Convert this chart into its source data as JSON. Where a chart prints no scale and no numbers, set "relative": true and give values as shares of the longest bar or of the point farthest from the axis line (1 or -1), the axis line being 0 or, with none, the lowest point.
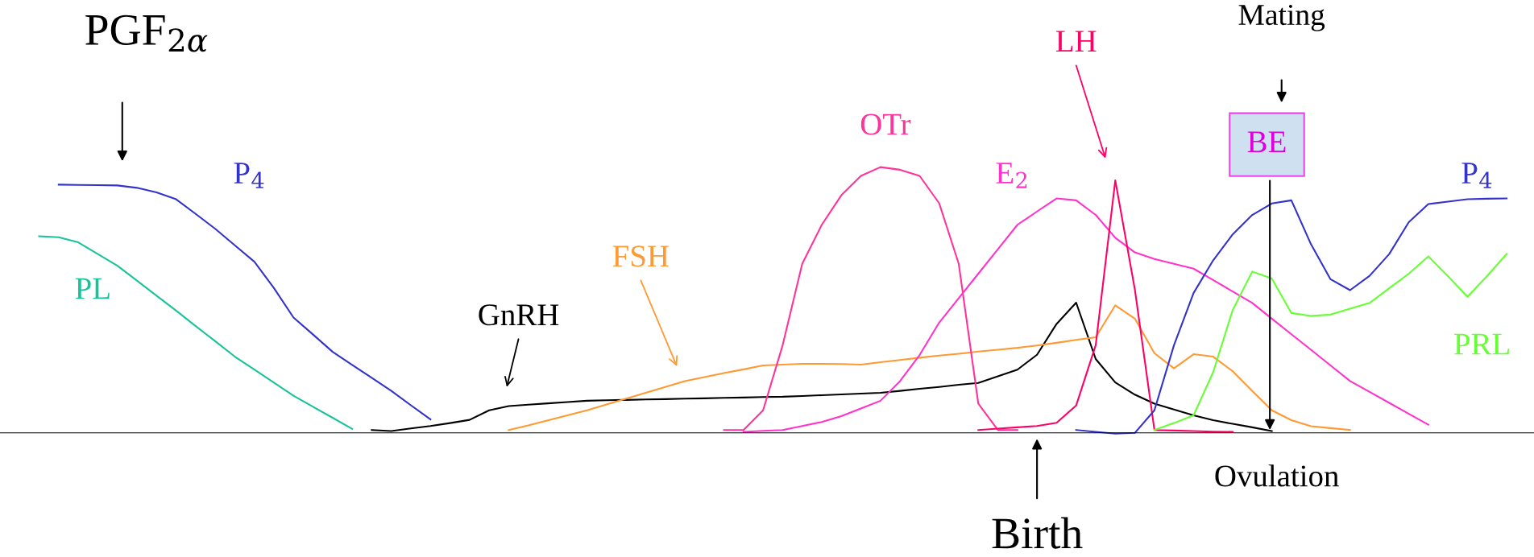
{
  "chart_data": {
    "type": "line",
    "relative": true,
    "marker": "none",
    "line_style": "solid",
    "categories": [
      null,
      null,
      null,
      null,
      null,
      null,
      null,
      null,
      null,
      null,
      null,
      null,
      null,
      null,
      null,
      null,
      null,
      null,
      null,
      null,
      null,
      null,
      null,
      null,
      null,
      null,
      null,
      null,
      null,
      null,
      null,
      null,
      null,
      null,
      null,
      null,
      null,
      null,
      null,
      null,
      null,
      null,
      null,
      null,
      null,
      null,
      null,
      null,
      null,
      null,
      null,
      null,
      null,
      null,
      null,
      null,
      null,
      null,
      null,
      null,
      null,
      null,
      null,
      null,
      null,
      null,
      null,
      null,
      null,
      null,
      null,
      null,
      null,
      null,
      null,
      null,
      null,
      null
    ],
    "series": [
      {
        "name": "PL",
        "color": "#19c39a",
        "values": [
          null,
          0.74,
          0.736,
          0.717,
          0.673,
          0.629,
          0.573,
          0.516,
          0.46,
          0.402,
          0.345,
          0.287,
          0.238,
          0.189,
          0.14,
          0.098,
          0.057,
          0.015,
          null,
          null,
          null,
          null,
          null,
          null,
          null,
          null,
          null,
          null,
          null,
          null,
          null,
          null,
          null,
          null,
          null,
          null,
          null,
          null,
          null,
          null,
          null,
          null,
          null,
          null,
          null,
          null,
          null,
          null,
          null,
          null,
          null,
          null,
          null,
          null,
          null,
          null,
          null,
          null,
          null,
          null,
          null,
          null,
          null,
          null,
          null,
          null,
          null,
          null,
          null,
          null,
          null,
          null,
          null,
          null,
          null,
          null,
          null,
          null
        ]
      },
      {
        "name": "P$_{4}$",
        "color": "#3333cc",
        "values": [
          null,
          null,
          0.934,
          0.933,
          0.932,
          0.931,
          0.922,
          0.905,
          0.879,
          0.824,
          0.768,
          0.706,
          0.644,
          0.545,
          0.434,
          0.37,
          0.305,
          0.256,
          0.207,
          0.158,
          0.104,
          0.051,
          null,
          null,
          null,
          null,
          null,
          null,
          null,
          null,
          null,
          null,
          null,
          null,
          null,
          null,
          null,
          null,
          null,
          null,
          null,
          null,
          null,
          null,
          null,
          null,
          null,
          null,
          null,
          null,
          null,
          null,
          null,
          null,
          null,
          null,
          null,
          null,
          null,
          null,
          null,
          null,
          null,
          null,
          null,
          null,
          null,
          null,
          null,
          null,
          null,
          null,
          null,
          null,
          null,
          null,
          null,
          null
        ]
      },
      {
        "name": "GnRH",
        "color": "#000000",
        "values": [
          null,
          null,
          null,
          null,
          null,
          null,
          null,
          null,
          null,
          null,
          null,
          null,
          null,
          null,
          null,
          null,
          null,
          null,
          0.011,
          0.007,
          0.017,
          0.026,
          0.037,
          0.049,
          0.085,
          0.101,
          0.106,
          0.111,
          0.116,
          0.121,
          0.123,
          0.124,
          0.126,
          0.127,
          0.129,
          0.13,
          0.132,
          0.133,
          0.135,
          0.136,
          0.139,
          0.142,
          0.145,
          0.148,
          0.151,
          0.158,
          0.166,
          0.173,
          0.181,
          0.188,
          0.213,
          0.238,
          0.294,
          0.41,
          0.49,
          0.278,
          0.19,
          0.144,
          0.11,
          0.088,
          0.066,
          0.048,
          0.034,
          0.021,
          0.007,
          null,
          null,
          null,
          null,
          null,
          null,
          null,
          null,
          null,
          null,
          null,
          null,
          null
        ]
      },
      {
        "name": "FSH",
        "color": "#ff9933",
        "values": [
          null,
          null,
          null,
          null,
          null,
          null,
          null,
          null,
          null,
          null,
          null,
          null,
          null,
          null,
          null,
          null,
          null,
          null,
          null,
          null,
          null,
          null,
          null,
          null,
          null,
          0.011,
          0.028,
          0.047,
          0.066,
          0.085,
          0.107,
          0.129,
          0.151,
          0.173,
          0.195,
          0.21,
          0.225,
          0.239,
          0.254,
          0.257,
          0.26,
          0.26,
          0.259,
          0.257,
          0.266,
          0.274,
          0.283,
          0.291,
          0.298,
          0.306,
          0.313,
          0.32,
          0.329,
          0.339,
          0.35,
          0.36,
          0.48,
          0.43,
          0.3,
          0.243,
          0.296,
          0.287,
          0.232,
          0.158,
          0.085,
          0.048,
          0.025,
          0.018,
          0.011,
          null,
          null,
          null,
          null,
          null,
          null,
          null,
          null,
          null
        ]
      },
      {
        "name": "OTr",
        "color": "#ff3399",
        "values": [
          null,
          null,
          null,
          null,
          null,
          null,
          null,
          null,
          null,
          null,
          null,
          null,
          null,
          null,
          null,
          null,
          null,
          null,
          null,
          null,
          null,
          null,
          null,
          null,
          null,
          null,
          null,
          null,
          null,
          null,
          null,
          null,
          null,
          null,
          null,
          null,
          0.011,
          0.011,
          0.085,
          0.33,
          0.636,
          0.783,
          0.894,
          0.967,
          1.0,
          0.99,
          0.967,
          0.864,
          0.636,
          0.11,
          0.011,
          0.011,
          null,
          null,
          null,
          null,
          null,
          null,
          null,
          null,
          null,
          null,
          null,
          null,
          null,
          null,
          null,
          null,
          null,
          null,
          null,
          null,
          null,
          null,
          null,
          null,
          null,
          null
        ]
      },
      {
        "name": "E$_{2}$",
        "color": "#ff33cc",
        "values": [
          null,
          null,
          null,
          null,
          null,
          null,
          null,
          null,
          null,
          null,
          null,
          null,
          null,
          null,
          null,
          null,
          null,
          null,
          null,
          null,
          null,
          null,
          null,
          null,
          null,
          null,
          null,
          null,
          null,
          null,
          null,
          null,
          null,
          null,
          null,
          null,
          null,
          0.004,
          0.008,
          0.011,
          0.026,
          0.041,
          0.063,
          0.092,
          0.121,
          0.195,
          0.293,
          0.415,
          0.507,
          0.599,
          0.691,
          0.783,
          0.833,
          0.882,
          0.875,
          0.82,
          0.734,
          0.679,
          0.654,
          0.636,
          0.618,
          0.575,
          0.532,
          0.489,
          0.43,
          0.371,
          0.313,
          0.254,
          0.195,
          0.154,
          0.113,
          0.072,
          0.031,
          null,
          null,
          null,
          null,
          null
        ]
      },
      {
        "name": "LH",
        "color": "#ff0066",
        "values": [
          null,
          null,
          null,
          null,
          null,
          null,
          null,
          null,
          null,
          null,
          null,
          null,
          null,
          null,
          null,
          null,
          null,
          null,
          null,
          null,
          null,
          null,
          null,
          null,
          null,
          null,
          null,
          null,
          null,
          null,
          null,
          null,
          null,
          null,
          null,
          null,
          null,
          null,
          null,
          null,
          null,
          null,
          null,
          null,
          null,
          null,
          null,
          null,
          null,
          0.011,
          0.016,
          0.021,
          0.026,
          0.038,
          0.103,
          0.33,
          0.95,
          0.54,
          0.011,
          0.009,
          0.007,
          0.005,
          0.004,
          null,
          null,
          null,
          null,
          null,
          null,
          null,
          null,
          null,
          null,
          null,
          null,
          null,
          null,
          null
        ]
      },
      {
        "name": "P$_{4}$",
        "color": "#3333cc",
        "values": [
          null,
          null,
          null,
          null,
          null,
          null,
          null,
          null,
          null,
          null,
          null,
          null,
          null,
          null,
          null,
          null,
          null,
          null,
          null,
          null,
          null,
          null,
          null,
          null,
          null,
          null,
          null,
          null,
          null,
          null,
          null,
          null,
          null,
          null,
          null,
          null,
          null,
          null,
          null,
          null,
          null,
          null,
          null,
          null,
          null,
          null,
          null,
          null,
          null,
          null,
          null,
          null,
          null,
          null,
          0.011,
          0.004,
          -0.003,
          0,
          0.085,
          0.33,
          0.526,
          0.649,
          0.747,
          0.82,
          0.863,
          0.875,
          0.71,
          0.578,
          0.537,
          0.591,
          0.673,
          0.793,
          0.861,
          0.87,
          0.879,
          0.881,
          0.882,
          null
        ]
      },
      {
        "name": "PRL",
        "color": "#66ff33",
        "values": [
          null,
          null,
          null,
          null,
          null,
          null,
          null,
          null,
          null,
          null,
          null,
          null,
          null,
          null,
          null,
          null,
          null,
          null,
          null,
          null,
          null,
          null,
          null,
          null,
          null,
          null,
          null,
          null,
          null,
          null,
          null,
          null,
          null,
          null,
          null,
          null,
          null,
          null,
          null,
          null,
          null,
          null,
          null,
          null,
          null,
          null,
          null,
          null,
          null,
          null,
          null,
          null,
          null,
          null,
          null,
          null,
          null,
          null,
          0.011,
          0.037,
          0.066,
          0.228,
          0.462,
          0.607,
          0.581,
          0.451,
          0.44,
          0.445,
          0.467,
          0.489,
          0.544,
          0.599,
          0.664,
          0.59,
          0.512,
          0.59,
          0.673,
          null
        ]
      }
    ],
    "annotations": [
      "PGF$_{2α}$",
      "Mating",
      "BE",
      "Ovulation",
      "Birth"
    ]
  }
}
